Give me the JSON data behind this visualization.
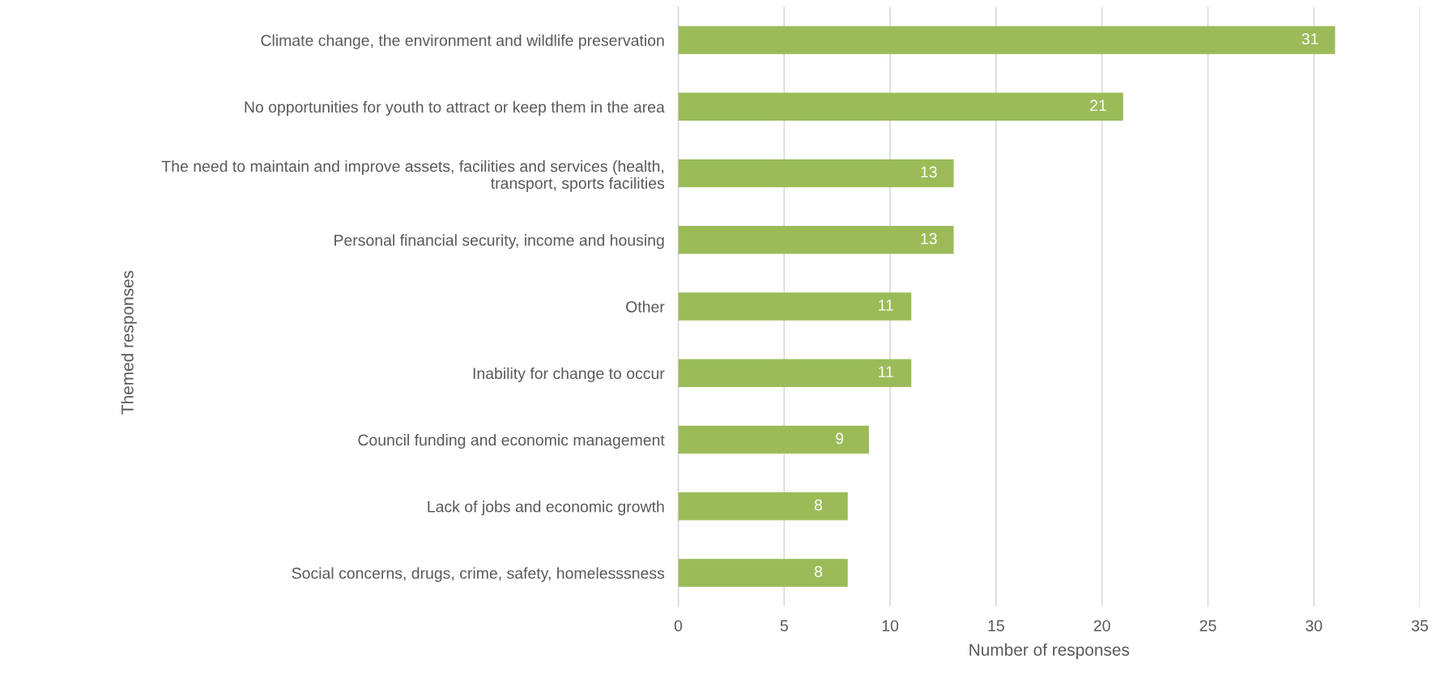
{
  "chart_data": {
    "type": "bar",
    "orientation": "horizontal",
    "xlabel": "Number of responses",
    "ylabel": "Themed responses",
    "categories": [
      "Climate change, the environment and wildlife preservation",
      "No opportunities for youth to attract or keep them in the area",
      "The need to maintain and improve assets, facilities and services (health,\ntransport, sports facilities",
      "Personal financial security, income and housing",
      "Other",
      "Inability for change to occur",
      "Council funding and economic management",
      "Lack of jobs and economic growth",
      "Social concerns, drugs, crime, safety, homelesssness"
    ],
    "values": [
      31,
      21,
      13,
      13,
      11,
      11,
      9,
      8,
      8
    ],
    "color": "#9bbb59",
    "xlim": [
      0,
      35
    ],
    "xticks": [
      0,
      5,
      10,
      15,
      20,
      25,
      30,
      35
    ],
    "grid": "x",
    "data_labels": true
  }
}
